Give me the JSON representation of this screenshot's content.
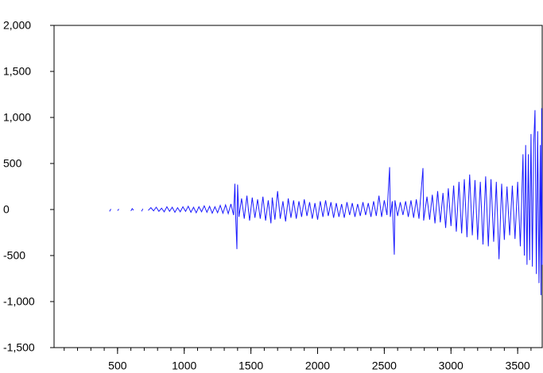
{
  "chart_data": {
    "type": "line",
    "x": [
      440,
      450,
      455,
      500,
      510,
      515,
      600,
      610,
      620,
      625,
      680,
      690,
      695,
      730,
      750,
      770,
      790,
      810,
      830,
      850,
      870,
      890,
      910,
      930,
      950,
      970,
      990,
      1010,
      1030,
      1050,
      1070,
      1090,
      1110,
      1130,
      1150,
      1170,
      1190,
      1210,
      1230,
      1250,
      1270,
      1290,
      1310,
      1330,
      1350,
      1370,
      1380,
      1385,
      1395,
      1400,
      1410,
      1430,
      1450,
      1470,
      1490,
      1510,
      1530,
      1550,
      1570,
      1590,
      1610,
      1630,
      1650,
      1660,
      1680,
      1700,
      1720,
      1740,
      1760,
      1780,
      1800,
      1820,
      1840,
      1860,
      1880,
      1900,
      1920,
      1940,
      1960,
      1980,
      2000,
      2020,
      2040,
      2060,
      2080,
      2100,
      2120,
      2140,
      2160,
      2180,
      2200,
      2220,
      2240,
      2260,
      2280,
      2300,
      2320,
      2340,
      2360,
      2380,
      2400,
      2420,
      2440,
      2460,
      2480,
      2500,
      2520,
      2540,
      2545,
      2560,
      2575,
      2580,
      2600,
      2620,
      2640,
      2660,
      2680,
      2700,
      2720,
      2740,
      2760,
      2790,
      2795,
      2820,
      2840,
      2860,
      2880,
      2900,
      2920,
      2940,
      2960,
      2980,
      3000,
      3020,
      3040,
      3060,
      3080,
      3100,
      3120,
      3140,
      3160,
      3180,
      3200,
      3220,
      3240,
      3260,
      3280,
      3300,
      3320,
      3340,
      3360,
      3380,
      3400,
      3420,
      3440,
      3460,
      3480,
      3500,
      3520,
      3540,
      3550,
      3560,
      3570,
      3580,
      3590,
      3600,
      3610,
      3620,
      3630,
      3640,
      3650,
      3660,
      3670,
      3675,
      3680,
      3684
    ],
    "series": [
      {
        "color": "#1a1aff",
        "values": [
          -20,
          5,
          null,
          -12,
          5,
          null,
          -15,
          10,
          -8,
          null,
          -20,
          8,
          null,
          -10,
          20,
          -15,
          25,
          -20,
          15,
          -25,
          30,
          -20,
          25,
          -30,
          20,
          -25,
          30,
          -20,
          35,
          -30,
          25,
          -35,
          30,
          -25,
          40,
          -30,
          35,
          -40,
          30,
          -35,
          45,
          -40,
          50,
          -45,
          60,
          -60,
          280,
          -50,
          -430,
          270,
          -80,
          120,
          -100,
          150,
          -120,
          130,
          -90,
          110,
          -100,
          140,
          -120,
          100,
          -150,
          130,
          -110,
          200,
          -100,
          90,
          -130,
          120,
          -90,
          100,
          -100,
          90,
          -80,
          110,
          -70,
          80,
          -100,
          70,
          -110,
          90,
          -80,
          100,
          -70,
          80,
          -90,
          70,
          -80,
          60,
          -90,
          80,
          -60,
          70,
          -80,
          60,
          -70,
          80,
          -60,
          70,
          -80,
          90,
          -70,
          150,
          -80,
          100,
          -60,
          460,
          -80,
          90,
          -490,
          100,
          -70,
          80,
          -60,
          90,
          -80,
          100,
          -90,
          110,
          -100,
          450,
          -120,
          140,
          -110,
          160,
          -150,
          200,
          -140,
          180,
          -200,
          230,
          -180,
          260,
          -240,
          300,
          -260,
          330,
          -300,
          380,
          -280,
          320,
          -330,
          300,
          -380,
          360,
          -400,
          330,
          -350,
          300,
          -540,
          280,
          -330,
          250,
          -280,
          260,
          -320,
          300,
          -400,
          600,
          -500,
          700,
          -600,
          600,
          -550,
          820,
          -620,
          700,
          1080,
          -700,
          850,
          -800,
          700,
          -930,
          1100,
          -600
        ]
      }
    ],
    "xlim": [
      24,
      3684
    ],
    "ylim": [
      -1500,
      2000
    ],
    "xticks": [
      500,
      1000,
      1500,
      2000,
      2500,
      3000,
      3500
    ],
    "xminorticks": [
      100,
      200,
      300,
      400,
      500,
      600,
      700,
      800,
      900,
      1000,
      1100,
      1200,
      1300,
      1400,
      1500,
      1600,
      1700,
      1800,
      1900,
      2000,
      2100,
      2200,
      2300,
      2400,
      2500,
      2600,
      2700,
      2800,
      2900,
      3000,
      3100,
      3200,
      3300,
      3400,
      3500,
      3600
    ],
    "yticks": [
      {
        "value": -1500,
        "label": "-1,500"
      },
      {
        "value": -1000,
        "label": "-1,000"
      },
      {
        "value": -500,
        "label": "-500"
      },
      0,
      500,
      {
        "value": 1000,
        "label": "1,000"
      },
      {
        "value": 1500,
        "label": "1,500"
      },
      {
        "value": 2000,
        "label": "2,000"
      }
    ]
  }
}
